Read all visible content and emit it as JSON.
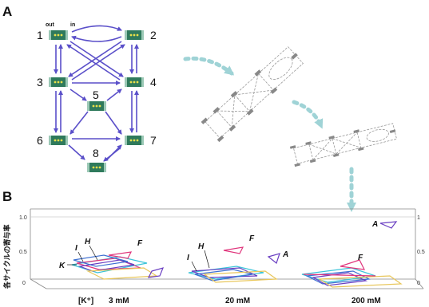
{
  "panel_a": {
    "letter": "A",
    "out_label": "out",
    "in_label": "in",
    "states": [
      "1",
      "2",
      "3",
      "4",
      "5",
      "6",
      "7",
      "8"
    ]
  },
  "panel_b": {
    "letter": "B",
    "y_axis_label": "各サイクルの寄与率",
    "y_ticks_left": [
      "1.0",
      "0.5",
      "0"
    ],
    "y_ticks_right": [
      "1",
      "0.5",
      "0"
    ],
    "x_prefix": "[K⁺]",
    "conditions": [
      "3 mM",
      "20 mM",
      "200 mM"
    ],
    "cycle_labels": {
      "group1": [
        "K",
        "I",
        "H",
        "F"
      ],
      "group2": [
        "I",
        "H",
        "F",
        "A"
      ],
      "group3": [
        "F",
        "A"
      ]
    }
  },
  "colors": {
    "arrow": "#5a4fc9",
    "arrow_shadow": "#d6c4e8",
    "channel": "#2f7a5c",
    "channel_light": "#9cc9b6",
    "dotted_arrow": "#9fd3d6",
    "cycle_cyan": "#3bc4d9",
    "cycle_pink": "#e0357c",
    "cycle_purple": "#6a3fc2",
    "cycle_yellow": "#e8c65a",
    "cycle_blue": "#3d6fd1"
  }
}
